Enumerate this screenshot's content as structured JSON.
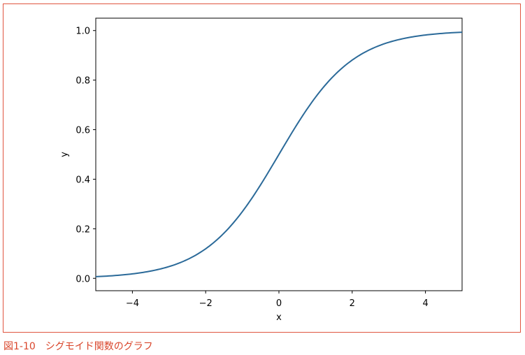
{
  "caption": "図1-10　シグモイド関数のグラフ",
  "chart_data": {
    "type": "line",
    "function": "sigmoid",
    "xlabel": "x",
    "ylabel": "y",
    "xlim": [
      -5,
      5
    ],
    "ylim": [
      -0.05,
      1.05
    ],
    "xticks": [
      -4,
      -2,
      0,
      2,
      4
    ],
    "xtick_labels": [
      "−4",
      "−2",
      "0",
      "2",
      "4"
    ],
    "yticks": [
      0.0,
      0.2,
      0.4,
      0.6,
      0.8,
      1.0
    ],
    "ytick_labels": [
      "0.0",
      "0.2",
      "0.4",
      "0.6",
      "0.8",
      "1.0"
    ],
    "grid": false,
    "line_color": "#2b6a99",
    "series": [
      {
        "x": [
          -5,
          -4.5,
          -4,
          -3.5,
          -3,
          -2.5,
          -2,
          -1.5,
          -1,
          -0.5,
          0,
          0.5,
          1,
          1.5,
          2,
          2.5,
          3,
          3.5,
          4,
          4.5,
          5
        ],
        "values": [
          0.007,
          0.011,
          0.018,
          0.029,
          0.047,
          0.076,
          0.119,
          0.182,
          0.269,
          0.378,
          0.5,
          0.622,
          0.731,
          0.818,
          0.881,
          0.924,
          0.953,
          0.971,
          0.982,
          0.989,
          0.993
        ]
      }
    ]
  }
}
